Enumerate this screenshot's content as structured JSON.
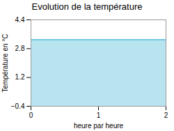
{
  "chart_data": {
    "type": "area",
    "title": "Evolution de la température",
    "xlabel": "heure par heure",
    "ylabel": "Température en °C",
    "x": [
      0,
      2
    ],
    "series": [
      {
        "type": "area",
        "color": "#b8e4f0",
        "values": [
          3.3,
          3.3
        ]
      },
      {
        "type": "line",
        "color": "#55bbdd",
        "values": [
          3.3,
          3.3
        ]
      }
    ],
    "xlim": [
      0,
      2
    ],
    "ylim": [
      -0.4,
      4.4
    ],
    "xticks": [
      0,
      1,
      2
    ],
    "yticks": [
      -0.4,
      1.2,
      2.8,
      4.4
    ],
    "grid": "y"
  }
}
